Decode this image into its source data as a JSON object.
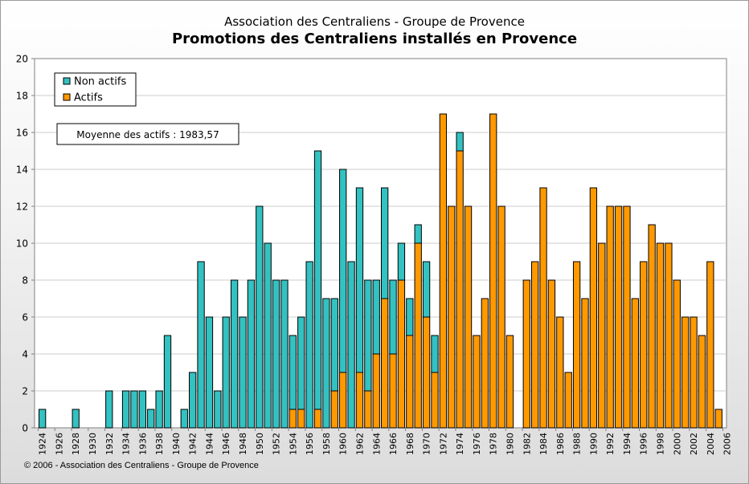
{
  "subtitle": "Association des Centraliens - Groupe de Provence",
  "title": "Promotions des Centraliens installés en Provence",
  "footer": "© 2006 - Association des Centraliens - Groupe de Provence",
  "annotation": "Moyenne des actifs : 1983,57",
  "colors": {
    "non_actifs": "#33c1c1",
    "actifs": "#ff9900",
    "plot_bg": "#ffffff",
    "grid": "#cccccc"
  },
  "chart_data": {
    "type": "bar",
    "stacked": true,
    "title": "Promotions des Centraliens installés en Provence",
    "subtitle": "Association des Centraliens - Groupe de Provence",
    "xlabel": "",
    "ylabel": "",
    "ylim": [
      0,
      20
    ],
    "y_ticks": [
      "0",
      "2",
      "4",
      "6",
      "8",
      "10",
      "12",
      "14",
      "16",
      "18",
      "20"
    ],
    "x_ticks": [
      "1924",
      "1926",
      "1928",
      "1930",
      "1932",
      "1934",
      "1936",
      "1938",
      "1940",
      "1942",
      "1944",
      "1946",
      "1948",
      "1950",
      "1952",
      "1954",
      "1956",
      "1958",
      "1960",
      "1962",
      "1964",
      "1966",
      "1968",
      "1970",
      "1972",
      "1974",
      "1976",
      "1978",
      "1980",
      "1982",
      "1984",
      "1986",
      "1988",
      "1990",
      "1992",
      "1994",
      "1996",
      "1998",
      "2000",
      "2002",
      "2004",
      "2006"
    ],
    "grid": true,
    "legend": {
      "placement": "top-left",
      "entries": [
        "Non actifs",
        "Actifs"
      ]
    },
    "categories": [
      1924,
      1925,
      1926,
      1927,
      1928,
      1929,
      1930,
      1931,
      1932,
      1933,
      1934,
      1935,
      1936,
      1937,
      1938,
      1939,
      1940,
      1941,
      1942,
      1943,
      1944,
      1945,
      1946,
      1947,
      1948,
      1949,
      1950,
      1951,
      1952,
      1953,
      1954,
      1955,
      1956,
      1957,
      1958,
      1959,
      1960,
      1961,
      1962,
      1963,
      1964,
      1965,
      1966,
      1967,
      1968,
      1969,
      1970,
      1971,
      1972,
      1973,
      1974,
      1975,
      1976,
      1977,
      1978,
      1979,
      1980,
      1981,
      1982,
      1983,
      1984,
      1985,
      1986,
      1987,
      1988,
      1989,
      1990,
      1991,
      1992,
      1993,
      1994,
      1995,
      1996,
      1997,
      1998,
      1999,
      2000,
      2001,
      2002,
      2003,
      2004,
      2005
    ],
    "series": [
      {
        "name": "Actifs",
        "values": [
          0,
          0,
          0,
          0,
          0,
          0,
          0,
          0,
          0,
          0,
          0,
          0,
          0,
          0,
          0,
          0,
          0,
          0,
          0,
          0,
          0,
          0,
          0,
          0,
          0,
          0,
          0,
          0,
          0,
          0,
          1,
          1,
          0,
          1,
          0,
          2,
          3,
          0,
          3,
          2,
          4,
          7,
          4,
          8,
          5,
          10,
          6,
          3,
          17,
          12,
          15,
          12,
          5,
          7,
          17,
          12,
          5,
          0,
          8,
          9,
          13,
          8,
          6,
          3,
          9,
          7,
          13,
          10,
          12,
          12,
          12,
          7,
          9,
          11,
          10,
          10,
          8,
          6,
          6,
          5,
          9,
          1
        ]
      },
      {
        "name": "Non actifs",
        "values": [
          1,
          0,
          0,
          0,
          1,
          0,
          0,
          0,
          2,
          0,
          2,
          2,
          2,
          1,
          2,
          5,
          0,
          1,
          3,
          9,
          6,
          2,
          6,
          8,
          6,
          8,
          12,
          10,
          8,
          8,
          4,
          5,
          9,
          14,
          7,
          5,
          11,
          9,
          10,
          6,
          4,
          6,
          4,
          2,
          2,
          1,
          3,
          2,
          0,
          0,
          1,
          0,
          0,
          0,
          0,
          0,
          0,
          0,
          0,
          0,
          0,
          0,
          0,
          0,
          0,
          0,
          0,
          0,
          0,
          0,
          0,
          0,
          0,
          0,
          0,
          0,
          0,
          0,
          0,
          0,
          0,
          0
        ]
      }
    ]
  }
}
